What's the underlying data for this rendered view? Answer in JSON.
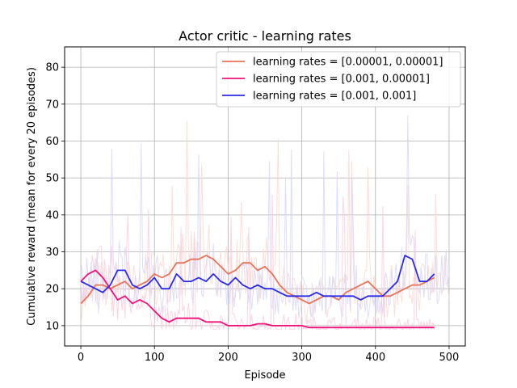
{
  "chart_data": {
    "type": "line",
    "title": "Actor critic - learning rates",
    "xlabel": "Episode",
    "ylabel": "Cumulative reward (mean for every 20 episodes)",
    "xlim": [
      -22,
      522
    ],
    "ylim": [
      4.5,
      85.5
    ],
    "x_ticks": [
      0,
      100,
      200,
      300,
      400,
      500
    ],
    "y_ticks": [
      10,
      20,
      30,
      40,
      50,
      60,
      70,
      80
    ],
    "grid": true,
    "legend_position": "top-right",
    "series": [
      {
        "name": "learning rates = [0.00001, 0.00001]",
        "color": "#e8735a",
        "raw_color": "#fbd6cc",
        "raw_end": 500,
        "values": [
          [
            0,
            16
          ],
          [
            10,
            18
          ],
          [
            20,
            21
          ],
          [
            30,
            21
          ],
          [
            40,
            20
          ],
          [
            50,
            21
          ],
          [
            60,
            22
          ],
          [
            70,
            20
          ],
          [
            80,
            21
          ],
          [
            90,
            22
          ],
          [
            100,
            24
          ],
          [
            110,
            23
          ],
          [
            120,
            24
          ],
          [
            130,
            27
          ],
          [
            140,
            27
          ],
          [
            150,
            28
          ],
          [
            160,
            28
          ],
          [
            170,
            29
          ],
          [
            180,
            28
          ],
          [
            190,
            26
          ],
          [
            200,
            24
          ],
          [
            210,
            25
          ],
          [
            220,
            27
          ],
          [
            230,
            27
          ],
          [
            240,
            25
          ],
          [
            250,
            26
          ],
          [
            260,
            24
          ],
          [
            270,
            21
          ],
          [
            280,
            19
          ],
          [
            290,
            18
          ],
          [
            300,
            17
          ],
          [
            310,
            16
          ],
          [
            320,
            17
          ],
          [
            330,
            18
          ],
          [
            340,
            18
          ],
          [
            350,
            17
          ],
          [
            360,
            19
          ],
          [
            370,
            20
          ],
          [
            380,
            21
          ],
          [
            390,
            22
          ],
          [
            400,
            20
          ],
          [
            410,
            18
          ],
          [
            420,
            18
          ],
          [
            430,
            19
          ],
          [
            440,
            20
          ],
          [
            450,
            21
          ],
          [
            460,
            21
          ],
          [
            470,
            22
          ],
          [
            480,
            23
          ]
        ]
      },
      {
        "name": "learning rates = [0.001, 0.00001]",
        "color": "#f0127a",
        "raw_color": "#fbc9dc",
        "raw_end": 480,
        "values": [
          [
            0,
            22
          ],
          [
            10,
            24
          ],
          [
            20,
            25
          ],
          [
            30,
            23
          ],
          [
            40,
            20
          ],
          [
            50,
            17
          ],
          [
            60,
            18
          ],
          [
            70,
            16
          ],
          [
            80,
            17
          ],
          [
            90,
            16
          ],
          [
            100,
            14
          ],
          [
            110,
            12
          ],
          [
            120,
            11
          ],
          [
            130,
            12
          ],
          [
            140,
            12
          ],
          [
            150,
            12
          ],
          [
            160,
            12
          ],
          [
            170,
            11
          ],
          [
            180,
            11
          ],
          [
            190,
            11
          ],
          [
            200,
            10
          ],
          [
            210,
            10
          ],
          [
            220,
            10
          ],
          [
            230,
            10
          ],
          [
            240,
            10.5
          ],
          [
            250,
            10.5
          ],
          [
            260,
            10
          ],
          [
            270,
            10
          ],
          [
            280,
            10
          ],
          [
            290,
            10
          ],
          [
            300,
            10
          ],
          [
            310,
            9.5
          ],
          [
            320,
            9.5
          ],
          [
            330,
            9.5
          ],
          [
            340,
            9.5
          ],
          [
            350,
            9.5
          ],
          [
            360,
            9.5
          ],
          [
            370,
            9.5
          ],
          [
            380,
            9.5
          ],
          [
            390,
            9.5
          ],
          [
            400,
            9.5
          ],
          [
            410,
            9.5
          ],
          [
            420,
            9.5
          ],
          [
            430,
            9.5
          ],
          [
            440,
            9.5
          ],
          [
            450,
            9.5
          ],
          [
            460,
            9.5
          ],
          [
            470,
            9.5
          ],
          [
            480,
            9.5
          ]
        ]
      },
      {
        "name": "learning rates = [0.001, 0.001]",
        "color": "#2b2be6",
        "raw_color": "#d4d4fb",
        "raw_end": 500,
        "values": [
          [
            0,
            22
          ],
          [
            10,
            21
          ],
          [
            20,
            20
          ],
          [
            30,
            19
          ],
          [
            40,
            21
          ],
          [
            50,
            25
          ],
          [
            60,
            25
          ],
          [
            70,
            21
          ],
          [
            80,
            20
          ],
          [
            90,
            21
          ],
          [
            100,
            23
          ],
          [
            110,
            20
          ],
          [
            120,
            20
          ],
          [
            130,
            24
          ],
          [
            140,
            22
          ],
          [
            150,
            22
          ],
          [
            160,
            23
          ],
          [
            170,
            22
          ],
          [
            180,
            24
          ],
          [
            190,
            22
          ],
          [
            200,
            21
          ],
          [
            210,
            23
          ],
          [
            220,
            21
          ],
          [
            230,
            20
          ],
          [
            240,
            21
          ],
          [
            250,
            20
          ],
          [
            260,
            20
          ],
          [
            270,
            19
          ],
          [
            280,
            18
          ],
          [
            290,
            18
          ],
          [
            300,
            18
          ],
          [
            310,
            18
          ],
          [
            320,
            19
          ],
          [
            330,
            18
          ],
          [
            340,
            18
          ],
          [
            350,
            18
          ],
          [
            360,
            18
          ],
          [
            370,
            18
          ],
          [
            380,
            17
          ],
          [
            390,
            18
          ],
          [
            400,
            18
          ],
          [
            410,
            18
          ],
          [
            420,
            20
          ],
          [
            430,
            22
          ],
          [
            440,
            29
          ],
          [
            450,
            28
          ],
          [
            460,
            22
          ],
          [
            470,
            22
          ],
          [
            480,
            24
          ]
        ]
      }
    ]
  }
}
